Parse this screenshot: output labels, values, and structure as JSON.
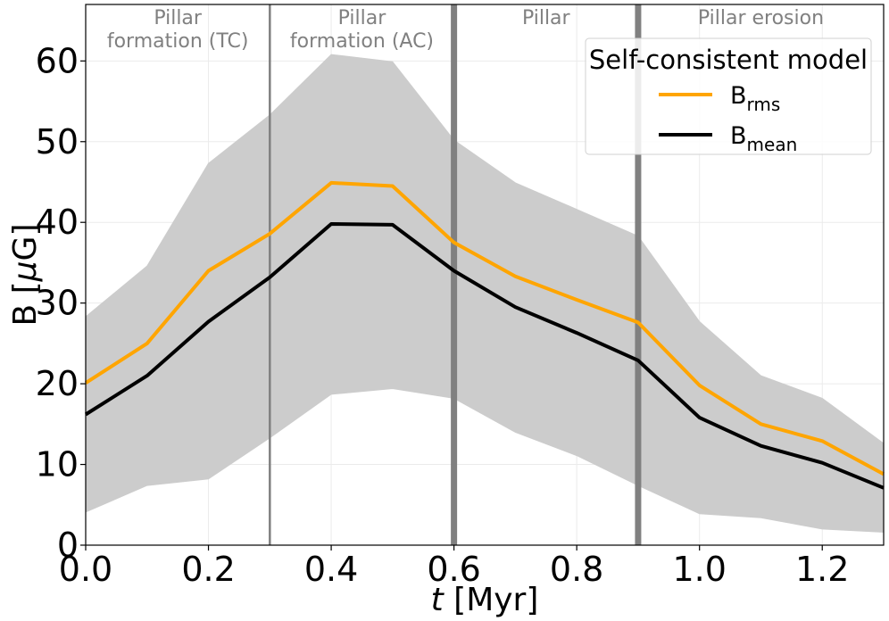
{
  "chart_data": {
    "type": "line",
    "x": [
      0.0,
      0.1,
      0.2,
      0.3,
      0.4,
      0.5,
      0.6,
      0.7,
      0.8,
      0.9,
      1.0,
      1.1,
      1.2,
      1.3
    ],
    "series": [
      {
        "name": "rms",
        "color": "#ffa500",
        "values": [
          20.1,
          25.0,
          34.0,
          38.6,
          44.9,
          44.5,
          37.5,
          33.3,
          30.4,
          27.6,
          19.8,
          15.0,
          12.9,
          8.8
        ]
      },
      {
        "name": "mean",
        "color": "#000000",
        "values": [
          16.2,
          21.0,
          27.7,
          33.2,
          39.8,
          39.7,
          34.0,
          29.5,
          26.3,
          22.9,
          15.8,
          12.3,
          10.2,
          7.1
        ]
      }
    ],
    "band": {
      "color": "#cccccc",
      "upper": [
        28.3,
        34.6,
        47.3,
        53.3,
        60.8,
        59.9,
        50.2,
        44.9,
        41.6,
        38.3,
        27.7,
        21.0,
        18.2,
        12.6
      ],
      "lower": [
        4.1,
        7.4,
        8.2,
        13.3,
        18.7,
        19.4,
        18.2,
        14.0,
        11.1,
        7.4,
        3.9,
        3.4,
        2.0,
        1.6
      ]
    },
    "phase_lines": [
      {
        "x": 0.3,
        "color": "#808080",
        "style": "thin"
      },
      {
        "x": 0.6,
        "color": "#808080",
        "style": "thick"
      },
      {
        "x": 0.9,
        "color": "#808080",
        "style": "thick"
      }
    ],
    "phase_labels": [
      {
        "lines": [
          "Pillar",
          "formation (TC)"
        ],
        "x": 0.15
      },
      {
        "lines": [
          "Pillar",
          "formation (AC)"
        ],
        "x": 0.45
      },
      {
        "lines": [
          "Pillar"
        ],
        "x": 0.75
      },
      {
        "lines": [
          "Pillar erosion"
        ],
        "x": 1.1
      }
    ],
    "xlim": [
      0.0,
      1.3
    ],
    "ylim": [
      0,
      67
    ],
    "xticks": [
      0.0,
      0.2,
      0.4,
      0.6,
      0.8,
      1.0,
      1.2
    ],
    "xtick_labels": [
      "0.0",
      "0.2",
      "0.4",
      "0.6",
      "0.8",
      "1.0",
      "1.2"
    ],
    "yticks": [
      0,
      10,
      20,
      30,
      40,
      50,
      60
    ],
    "ytick_labels": [
      "0",
      "10",
      "20",
      "30",
      "40",
      "50",
      "60"
    ],
    "xlabel": {
      "italic": "t",
      "rest": " [Myr]"
    },
    "ylabel": {
      "pre": "B [",
      "mu": "μ",
      "post": "G]"
    },
    "grid": true,
    "legend": {
      "position": "top-right",
      "title": "Self-consistent model",
      "entries": [
        {
          "base": "B",
          "sub": "rms",
          "color": "#ffa500"
        },
        {
          "base": "B",
          "sub": "mean",
          "color": "#000000"
        }
      ]
    }
  }
}
